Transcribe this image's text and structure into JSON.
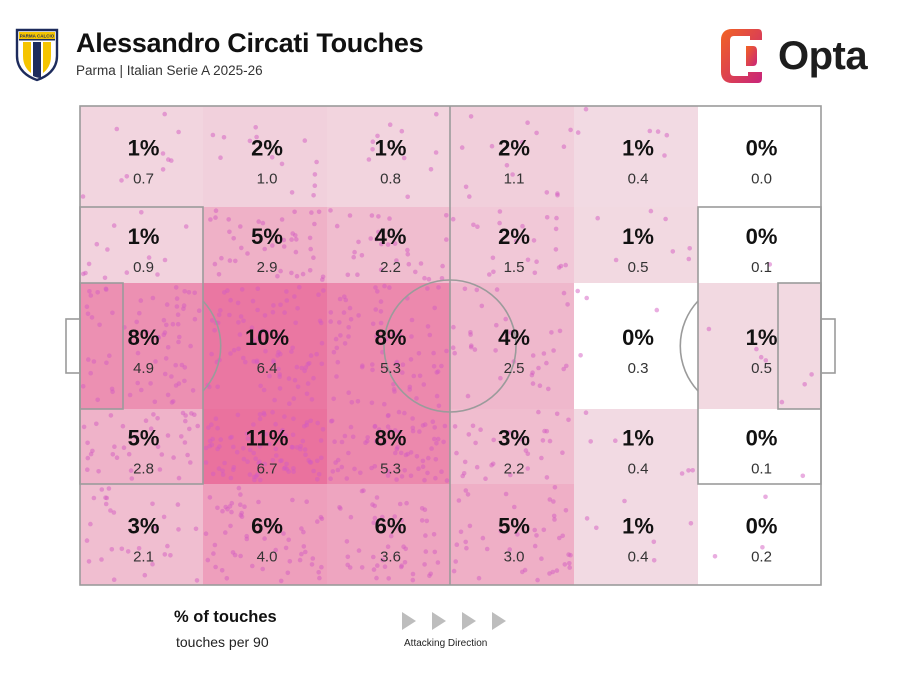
{
  "header": {
    "title": "Alessandro Circati Touches",
    "subtitle": "Parma | Italian Serie A 2025-26",
    "club_badge": "parma-calcio-crest",
    "club_badge_text": "PARMA CALCIO",
    "brand": "Opta"
  },
  "legend": {
    "pct_label": "% of touches",
    "p90_label": "touches per 90",
    "direction_label": "Attacking Direction"
  },
  "colors": {
    "touch_dot": "#d45bc1",
    "heat_max": "#e96495",
    "pitch_line": "#9b9b9b",
    "opta_orange": "#f26322",
    "opta_magenta": "#c8247b"
  },
  "chart_data": {
    "type": "heatmap",
    "direction": "left-to-right",
    "columns": 6,
    "rows": 5,
    "cells": [
      [
        {
          "pct": "1%",
          "p90": "0.7"
        },
        {
          "pct": "2%",
          "p90": "1.0"
        },
        {
          "pct": "1%",
          "p90": "0.8"
        },
        {
          "pct": "2%",
          "p90": "1.1"
        },
        {
          "pct": "1%",
          "p90": "0.4"
        },
        {
          "pct": "0%",
          "p90": "0.0"
        }
      ],
      [
        {
          "pct": "1%",
          "p90": "0.9"
        },
        {
          "pct": "5%",
          "p90": "2.9"
        },
        {
          "pct": "4%",
          "p90": "2.2"
        },
        {
          "pct": "2%",
          "p90": "1.5"
        },
        {
          "pct": "1%",
          "p90": "0.5"
        },
        {
          "pct": "0%",
          "p90": "0.1"
        }
      ],
      [
        {
          "pct": "8%",
          "p90": "4.9"
        },
        {
          "pct": "10%",
          "p90": "6.4"
        },
        {
          "pct": "8%",
          "p90": "5.3"
        },
        {
          "pct": "4%",
          "p90": "2.5"
        },
        {
          "pct": "0%",
          "p90": "0.3"
        },
        {
          "pct": "1%",
          "p90": "0.5"
        }
      ],
      [
        {
          "pct": "5%",
          "p90": "2.8"
        },
        {
          "pct": "11%",
          "p90": "6.7"
        },
        {
          "pct": "8%",
          "p90": "5.3"
        },
        {
          "pct": "3%",
          "p90": "2.2"
        },
        {
          "pct": "1%",
          "p90": "0.4"
        },
        {
          "pct": "0%",
          "p90": "0.1"
        }
      ],
      [
        {
          "pct": "3%",
          "p90": "2.1"
        },
        {
          "pct": "6%",
          "p90": "4.0"
        },
        {
          "pct": "6%",
          "p90": "3.6"
        },
        {
          "pct": "5%",
          "p90": "3.0"
        },
        {
          "pct": "1%",
          "p90": "0.4"
        },
        {
          "pct": "0%",
          "p90": "0.2"
        }
      ]
    ]
  }
}
